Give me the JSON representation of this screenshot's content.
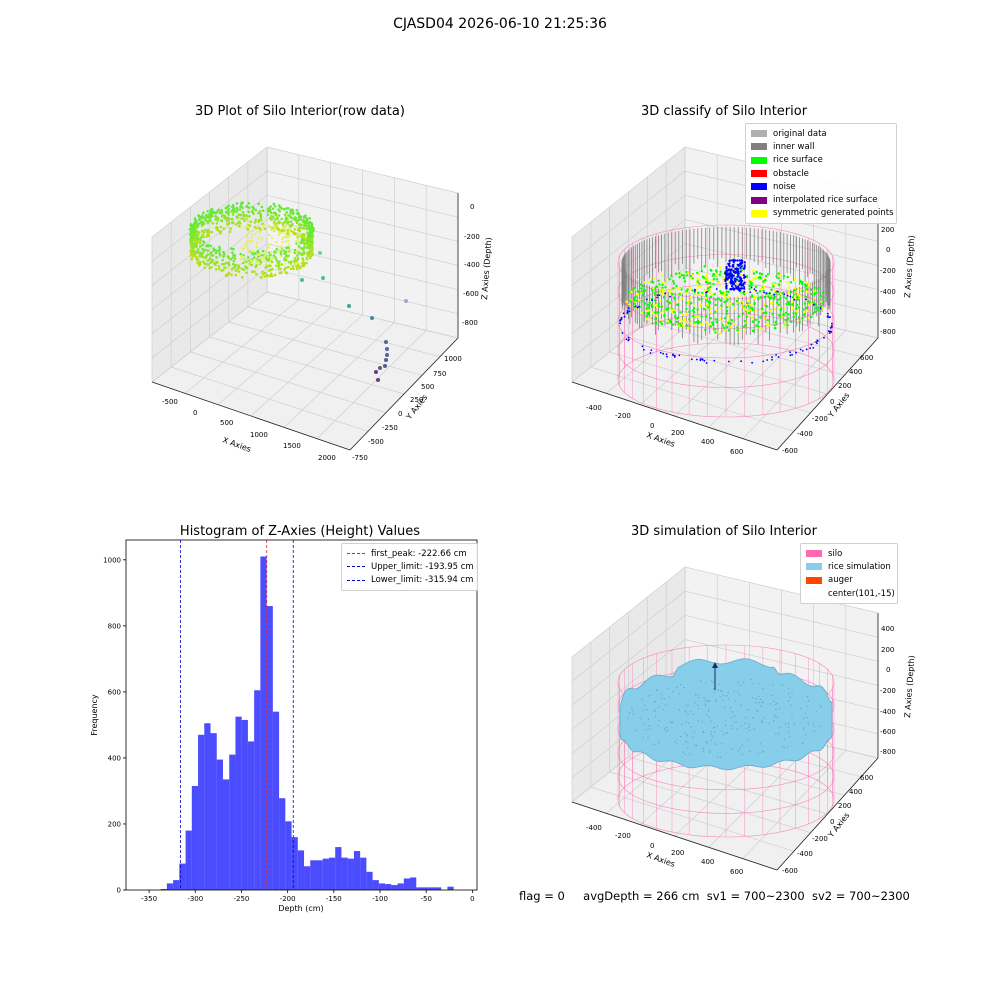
{
  "suptitle": "CJASD04 2026-06-10 21:25:36",
  "footer": {
    "flag": "flag = 0",
    "avg_depth": "avgDepth = 266 cm",
    "sv1": "sv1 = 700~2300",
    "sv2": "sv2 = 700~2300"
  },
  "panels": {
    "raw": {
      "title": "3D Plot of Silo Interior(row data)",
      "xlabel": "X Axies",
      "ylabel": "Y Axies",
      "zlabel": "Z Axies (Depth)",
      "x_ticks": [
        "-500",
        "0",
        "500",
        "1000",
        "1500",
        "2000"
      ],
      "y_ticks": [
        "-750",
        "-500",
        "-250",
        "0",
        "250",
        "500",
        "750",
        "1000"
      ],
      "z_ticks": [
        "-800",
        "-600",
        "-400",
        "-200",
        "0"
      ]
    },
    "classify": {
      "title": "3D classify of Silo Interior",
      "xlabel": "X Axies",
      "ylabel": "Y Axies",
      "zlabel": "Z Axies (Depth)",
      "x_ticks": [
        "-400",
        "-200",
        "0",
        "200",
        "400",
        "600"
      ],
      "y_ticks": [
        "-600",
        "-400",
        "-200",
        "0",
        "200",
        "400",
        "600"
      ],
      "z_ticks": [
        "-800",
        "-600",
        "-400",
        "-200",
        "0",
        "200"
      ],
      "legend": [
        {
          "label": "original data",
          "color": "#b0b0b0"
        },
        {
          "label": "inner wall",
          "color": "#808080"
        },
        {
          "label": "rice surface",
          "color": "#00ff00"
        },
        {
          "label": "obstacle",
          "color": "#ff0000"
        },
        {
          "label": "noise",
          "color": "#0000ff"
        },
        {
          "label": "interpolated rice surface",
          "color": "#800080"
        },
        {
          "label": "symmetric generated points",
          "color": "#ffff00"
        }
      ]
    },
    "simulation": {
      "title": "3D simulation of Silo Interior",
      "xlabel": "X Axies",
      "ylabel": "Y Axies",
      "zlabel": "Z Axies (Depth)",
      "x_ticks": [
        "-400",
        "-200",
        "0",
        "200",
        "400",
        "600"
      ],
      "y_ticks": [
        "-600",
        "-400",
        "-200",
        "0",
        "200",
        "400",
        "600"
      ],
      "z_ticks": [
        "-800",
        "-600",
        "-400",
        "-200",
        "0",
        "200",
        "400"
      ],
      "legend": [
        {
          "label": "silo",
          "color": "#ff69b4"
        },
        {
          "label": "rice simulation",
          "color": "#87ceeb"
        },
        {
          "label": "auger",
          "color": "#ff4500"
        },
        {
          "label": "center(101,-15)",
          "color": ""
        }
      ]
    }
  },
  "chart_data": [
    {
      "type": "bar",
      "title": "Histogram of Z-Axies (Height) Values",
      "xlabel": "Depth (cm)",
      "ylabel": "Frequency",
      "xlim": [
        -375,
        5
      ],
      "ylim": [
        0,
        1060
      ],
      "x_ticks": [
        -350,
        -300,
        -250,
        -200,
        -150,
        -100,
        -50,
        0
      ],
      "y_ticks": [
        0,
        200,
        400,
        600,
        800,
        1000
      ],
      "bar_color": "#0000ff",
      "bin_start": -337.5,
      "bin_width": 6.75,
      "values": [
        3,
        20,
        30,
        80,
        180,
        315,
        470,
        505,
        475,
        395,
        335,
        410,
        525,
        515,
        450,
        605,
        1010,
        860,
        540,
        278,
        208,
        160,
        120,
        72,
        90,
        90,
        95,
        98,
        130,
        98,
        95,
        118,
        98,
        55,
        30,
        20,
        18,
        15,
        20,
        35,
        38,
        8,
        8,
        8,
        8,
        0,
        10
      ],
      "reference_lines": [
        {
          "name": "first_peak: -222.66 cm",
          "x": -222.66,
          "color": "#d62728"
        },
        {
          "name": "Upper_limit: -193.95 cm",
          "x": -193.95,
          "color": "#0000cc"
        },
        {
          "name": "Lower_limit: -315.94 cm",
          "x": -315.94,
          "color": "#0000cc"
        }
      ],
      "legend_position": "top-right"
    }
  ]
}
